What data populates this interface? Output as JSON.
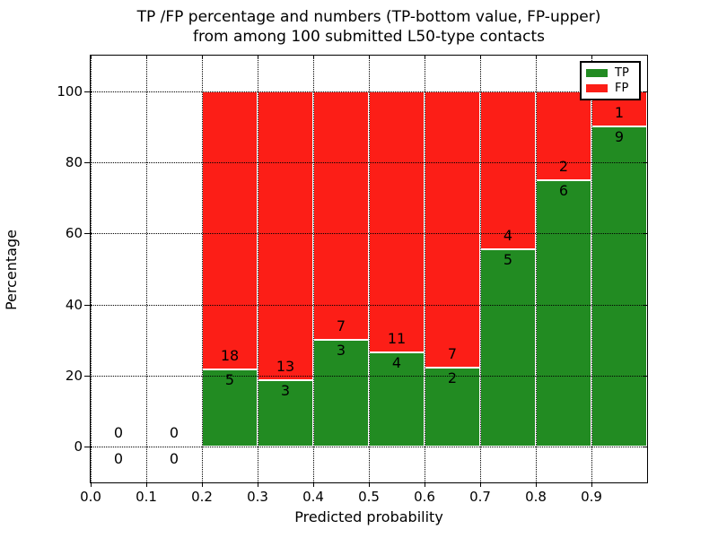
{
  "figure": {
    "title_line1": "TP /FP percentage and numbers (TP-bottom value, FP-upper)",
    "title_line2": "from among 100 submitted L50-type contacts",
    "background": "#ffffff"
  },
  "chart_data": {
    "type": "bar",
    "stacked": true,
    "title": "TP /FP percentage and numbers (TP-bottom value, FP-upper) from among 100 submitted L50-type contacts",
    "xlabel": "Predicted probability",
    "ylabel": "Percentage",
    "xlim": [
      0.0,
      1.0
    ],
    "ylim": [
      -10,
      110
    ],
    "xticks": [
      "0.0",
      "0.1",
      "0.2",
      "0.3",
      "0.4",
      "0.5",
      "0.6",
      "0.7",
      "0.8",
      "0.9"
    ],
    "yticks": [
      0,
      20,
      40,
      60,
      80,
      100
    ],
    "grid": "dotted",
    "grid_on": true,
    "legend": {
      "position": "upper right",
      "entries": [
        {
          "label": "TP",
          "color": "#228b22"
        },
        {
          "label": "FP",
          "color": "#fc1e17"
        }
      ]
    },
    "bins": [
      {
        "x0": 0.0,
        "x1": 0.1,
        "tp": 0,
        "fp": 0,
        "tp_pct": 0,
        "fp_pct": 0
      },
      {
        "x0": 0.1,
        "x1": 0.2,
        "tp": 0,
        "fp": 0,
        "tp_pct": 0,
        "fp_pct": 0
      },
      {
        "x0": 0.2,
        "x1": 0.3,
        "tp": 5,
        "fp": 18,
        "tp_pct": 21.74,
        "fp_pct": 78.26
      },
      {
        "x0": 0.3,
        "x1": 0.4,
        "tp": 3,
        "fp": 13,
        "tp_pct": 18.75,
        "fp_pct": 81.25
      },
      {
        "x0": 0.4,
        "x1": 0.5,
        "tp": 3,
        "fp": 7,
        "tp_pct": 30.0,
        "fp_pct": 70.0
      },
      {
        "x0": 0.5,
        "x1": 0.6,
        "tp": 4,
        "fp": 11,
        "tp_pct": 26.67,
        "fp_pct": 73.33
      },
      {
        "x0": 0.6,
        "x1": 0.7,
        "tp": 2,
        "fp": 7,
        "tp_pct": 22.22,
        "fp_pct": 77.78
      },
      {
        "x0": 0.7,
        "x1": 0.8,
        "tp": 5,
        "fp": 4,
        "tp_pct": 55.56,
        "fp_pct": 44.44
      },
      {
        "x0": 0.8,
        "x1": 0.9,
        "tp": 6,
        "fp": 2,
        "tp_pct": 75.0,
        "fp_pct": 25.0
      },
      {
        "x0": 0.9,
        "x1": 1.0,
        "tp": 9,
        "fp": 1,
        "tp_pct": 90.0,
        "fp_pct": 10.0
      }
    ]
  }
}
